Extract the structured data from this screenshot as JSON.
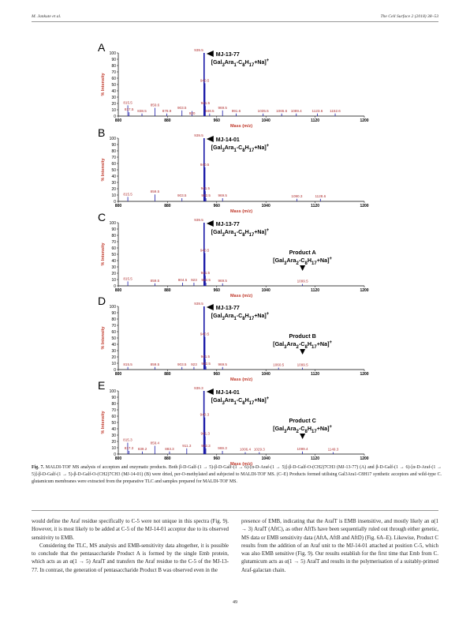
{
  "header": {
    "left": "M. Jankute et al.",
    "right": "The Cell Surface 2 (2018) 38–53"
  },
  "figure": {
    "axes": {
      "x_ticks": [
        "800",
        "880",
        "960",
        "1040",
        "1120",
        "1200"
      ],
      "y_ticks": [
        "100",
        "90",
        "80",
        "70",
        "60",
        "50",
        "40",
        "30",
        "20",
        "10",
        "0"
      ],
      "xlabel": "Mass (m/z)",
      "ylabel": "% Intensity"
    },
    "product_label_line": "[Gal3Ara2-C8H17+Na]+"
  },
  "chart_data": [
    {
      "type": "bar",
      "panel": "A",
      "marker": "MJ-13-77",
      "formula": "[Gal3Ara1-C8H17+Na]+",
      "xlabel": "Mass (m/z)",
      "ylabel": "% Intensity",
      "xlim": [
        800,
        1200
      ],
      "ylim": [
        0,
        100
      ],
      "peaks": [
        {
          "x": 815.5,
          "y": 17
        },
        {
          "x": 817.5,
          "y": 6
        },
        {
          "x": 838.5,
          "y": 4
        },
        {
          "x": 859.6,
          "y": 13
        },
        {
          "x": 878.9,
          "y": 4
        },
        {
          "x": 903.5,
          "y": 9
        },
        {
          "x": 920.0,
          "y": 8,
          "label": "920"
        },
        {
          "x": 939.5,
          "y": 100
        },
        {
          "x": 940.5,
          "y": 52
        },
        {
          "x": 941.5,
          "y": 16
        },
        {
          "x": 948.5,
          "y": 4
        },
        {
          "x": 969.5,
          "y": 9
        },
        {
          "x": 991.6,
          "y": 4
        },
        {
          "x": 1035.5,
          "y": 4
        },
        {
          "x": 1065.6,
          "y": 4
        },
        {
          "x": 1089.4,
          "y": 4
        },
        {
          "x": 1123.6,
          "y": 4
        },
        {
          "x": 1152.6,
          "y": 4
        }
      ]
    },
    {
      "type": "bar",
      "panel": "B",
      "marker": "MJ-14-01",
      "formula": "[Gal3Ara1-C8H17+Na]+",
      "xlabel": "Mass (m/z)",
      "ylabel": "% Intensity",
      "xlim": [
        800,
        1200
      ],
      "ylim": [
        0,
        100
      ],
      "peaks": [
        {
          "x": 815.5,
          "y": 7
        },
        {
          "x": 859.5,
          "y": 11
        },
        {
          "x": 903.5,
          "y": 5
        },
        {
          "x": 939.5,
          "y": 100
        },
        {
          "x": 940.5,
          "y": 54
        },
        {
          "x": 941.5,
          "y": 16
        },
        {
          "x": 942.5,
          "y": 5
        },
        {
          "x": 969.5,
          "y": 5
        },
        {
          "x": 1090.3,
          "y": 4
        },
        {
          "x": 1128.6,
          "y": 4
        }
      ]
    },
    {
      "type": "bar",
      "panel": "C",
      "marker": "MJ-13-77",
      "formula": "[Gal3Ara1-C8H17+Na]+",
      "product": "Product A",
      "xlabel": "Mass (m/z)",
      "ylabel": "% Intensity",
      "xlim": [
        800,
        1200
      ],
      "ylim": [
        0,
        100
      ],
      "peaks": [
        {
          "x": 815.5,
          "y": 7
        },
        {
          "x": 859.5,
          "y": 4
        },
        {
          "x": 904.5,
          "y": 5
        },
        {
          "x": 923.0,
          "y": 5,
          "label": "923"
        },
        {
          "x": 939.5,
          "y": 100
        },
        {
          "x": 940.5,
          "y": 52
        },
        {
          "x": 941.5,
          "y": 16
        },
        {
          "x": 942.5,
          "y": 5
        },
        {
          "x": 969.5,
          "y": 4
        },
        {
          "x": 1099.5,
          "y": 3
        }
      ]
    },
    {
      "type": "bar",
      "panel": "D",
      "marker": "MJ-13-77",
      "formula": "[Gal3Ara1-C8H17+Na]+",
      "product": "Product B",
      "xlabel": "Mass (m/z)",
      "ylabel": "% Intensity",
      "xlim": [
        800,
        1200
      ],
      "ylim": [
        0,
        100
      ],
      "peaks": [
        {
          "x": 815.5,
          "y": 4
        },
        {
          "x": 859.5,
          "y": 4
        },
        {
          "x": 903.5,
          "y": 4
        },
        {
          "x": 923.0,
          "y": 4,
          "label": "923"
        },
        {
          "x": 939.5,
          "y": 100
        },
        {
          "x": 940.5,
          "y": 52
        },
        {
          "x": 941.5,
          "y": 16
        },
        {
          "x": 942.5,
          "y": 5
        },
        {
          "x": 969.5,
          "y": 4
        },
        {
          "x": 1060.5,
          "y": 3
        },
        {
          "x": 1099.5,
          "y": 3
        }
      ]
    },
    {
      "type": "bar",
      "panel": "E",
      "marker": "MJ-14-01",
      "formula": "[Gal3Ara1-C8H17+Na]+",
      "product": "Product C",
      "xlabel": "Mass (m/z)",
      "ylabel": "% Intensity",
      "xlim": [
        800,
        1200
      ],
      "ylim": [
        0,
        100
      ],
      "peaks": [
        {
          "x": 815.3,
          "y": 18
        },
        {
          "x": 817.3,
          "y": 5
        },
        {
          "x": 839.2,
          "y": 4
        },
        {
          "x": 859.4,
          "y": 13
        },
        {
          "x": 883.3,
          "y": 4
        },
        {
          "x": 911.3,
          "y": 9
        },
        {
          "x": 939.3,
          "y": 100
        },
        {
          "x": 940.3,
          "y": 58
        },
        {
          "x": 941.3,
          "y": 28
        },
        {
          "x": 942.3,
          "y": 9
        },
        {
          "x": 969.3,
          "y": 5
        },
        {
          "x": 1006.4,
          "y": 3
        },
        {
          "x": 1029.3,
          "y": 3
        },
        {
          "x": 1099.4,
          "y": 4
        },
        {
          "x": 1149.3,
          "y": 3
        }
      ]
    }
  ],
  "caption": {
    "label": "Fig. 7.",
    "text": "MALDI-TOF MS analysis of acceptors and enzymatic products. Both β-D-Galf-(1 → 5)-β-D-Galf-(1 → 6)-[α-D-Araf-(1 → 5)]-β-D-Galf-O-(CH2)7CH3 (MJ-13-77) (A) and β-D-Galf-(1 → 6)-[α-D-Araf-(1 → 5)]-β-D-Galf-(1 → 5)-β-D-Galf-O-(CH2)7CH3 (MJ-14-01) (B) were dried, per-O-methylated and subjected to MALDI-TOF MS. (C–E) Products formed utilising Gal3Ara1-C8H17 synthetic acceptors and wild-type C. glutamicum membranes were extracted from the preparative TLC and samples prepared for MALDI-TOF MS."
  },
  "body": {
    "left_col": [
      "would define the Araf residue specifically to C-5 were not unique in this spectra (Fig. 9). However, it is most likely to be added at C-5 of the MJ-14-01 acceptor due to its observed sensitivity to EMB.",
      "Considering the TLC, MS analysis and EMB-sensitivity data altogether, it is possible to conclude that the pentasaccharide Product A is formed by the single Emb protein, which acts as an α(1 → 5) AraſT and transfers the Araf residue to the C-5 of the MJ-13-77. In contrast, the generation of pentasaccharide Product B was observed even in the"
    ],
    "right_col": [
      "presence of EMB, indicating that the AraſT is EMB insensitive, and mostly likely an α(1 → 3) AraſT (AftC), as other AftTs have been sequentially ruled out through either genetic, MS data or EMB sensitivity data (AftA, AftB and AftD) (Fig. 6A–E). Likewise, Product C results from the addition of an Araf unit to the MJ-14-01 attached at position C-5, which was also EMB sensitive (Fig. 9). Our results establish for the first time that Emb from C. glutamicum acts as α(1 → 5) AraſT and results in the polymerisation of a suitably-primed Araf-galactan chain."
    ]
  },
  "page_number": "49",
  "colors": {
    "peak": "#1a1aa8",
    "peak_label": "#b03030",
    "axis_label": "#c0392b",
    "reference_link": "#3a6fb0"
  }
}
